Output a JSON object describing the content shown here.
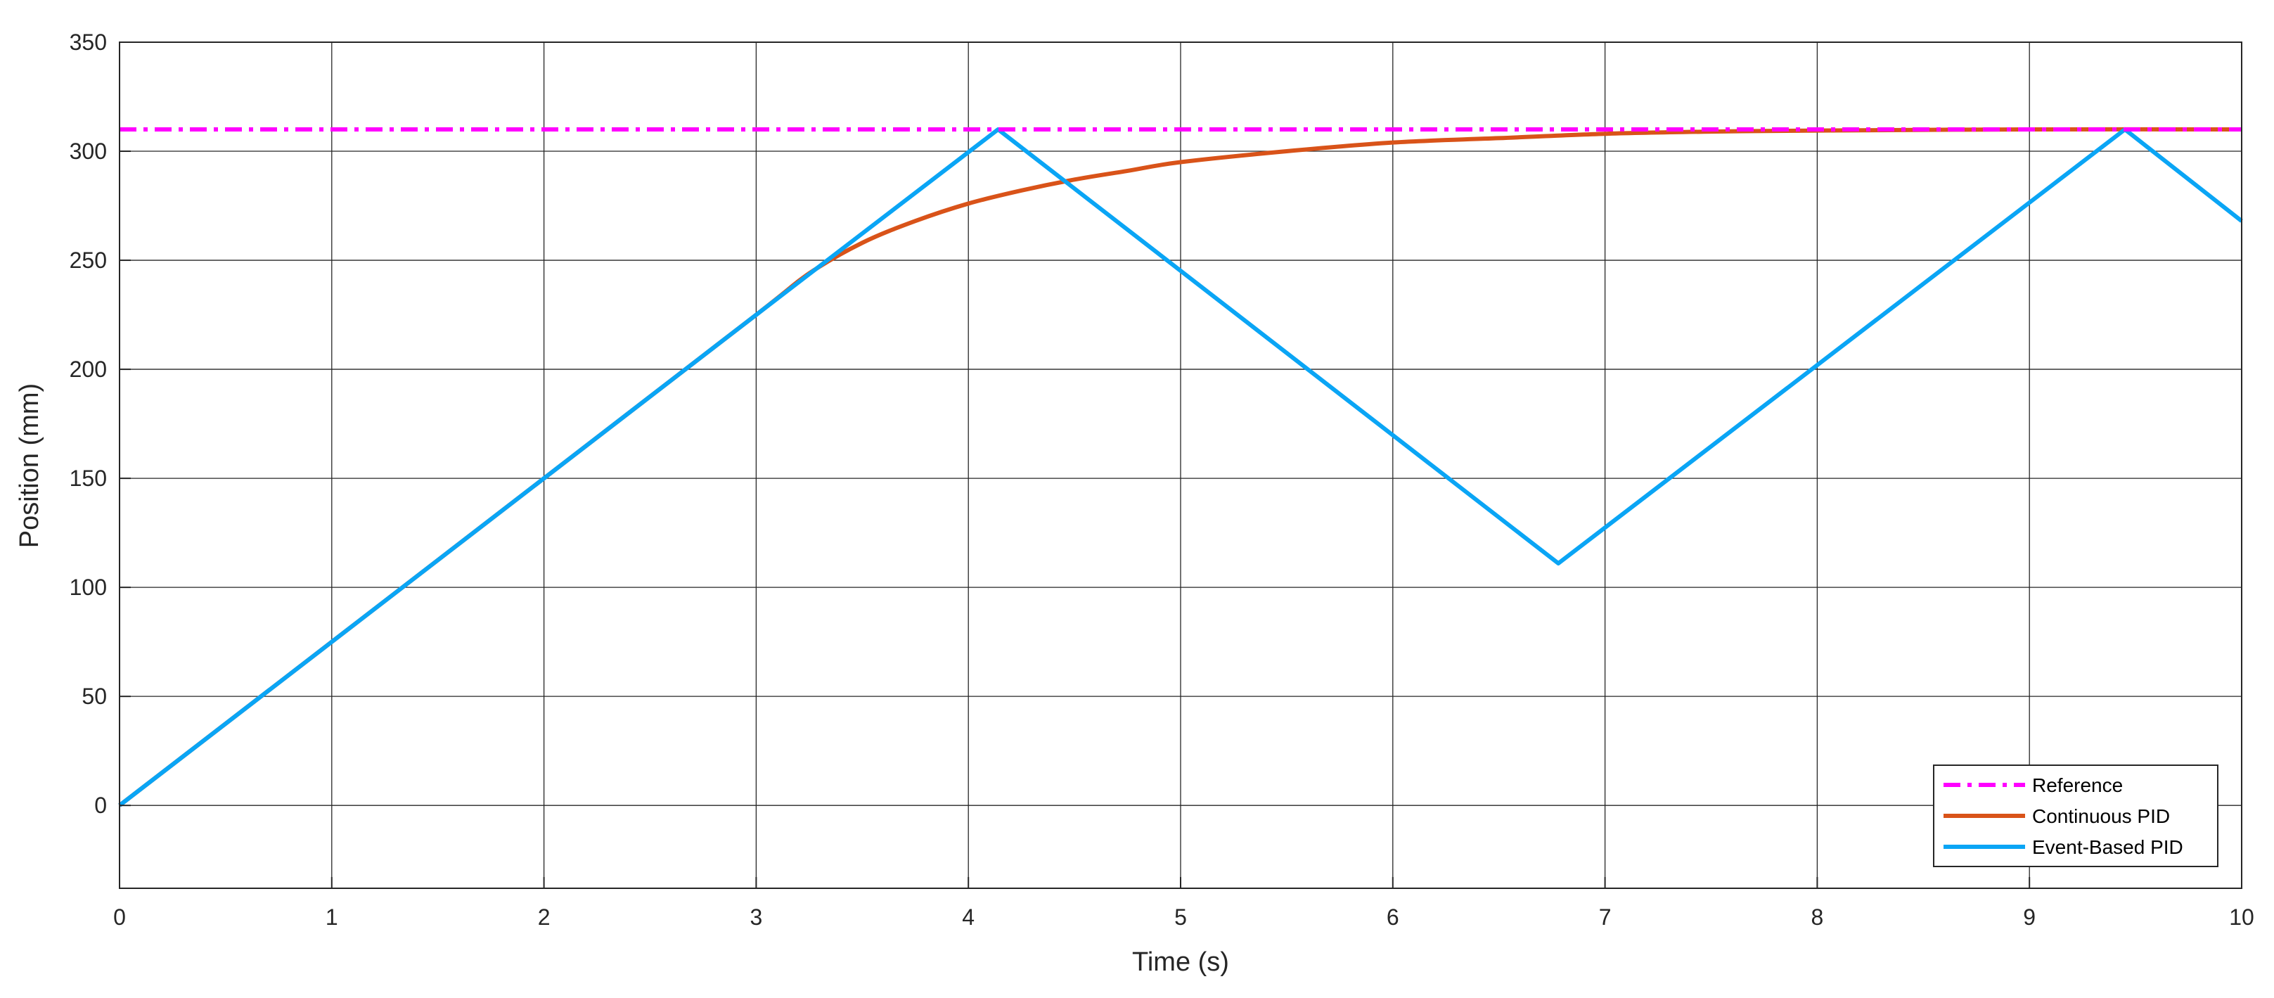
{
  "chart_data": {
    "type": "line",
    "xlabel": "Time (s)",
    "ylabel": "Position (mm)",
    "xlim": [
      0,
      10
    ],
    "ylim": [
      -38,
      350
    ],
    "xticks": [
      0,
      1,
      2,
      3,
      4,
      5,
      6,
      7,
      8,
      9,
      10
    ],
    "yticks": [
      0,
      50,
      100,
      150,
      200,
      250,
      300,
      350
    ],
    "grid": true,
    "legend_position": "bottom-right",
    "series": [
      {
        "name": "Reference",
        "color": "#ff00ff",
        "style": "dash-dot",
        "x": [
          0,
          10
        ],
        "y": [
          310,
          310
        ]
      },
      {
        "name": "Continuous PID",
        "color": "#d95319",
        "style": "solid",
        "x": [
          0,
          1,
          2,
          3,
          3.25,
          3.5,
          3.75,
          4,
          4.25,
          4.5,
          4.75,
          5,
          5.5,
          6,
          6.5,
          7,
          7.5,
          8,
          9,
          10
        ],
        "y": [
          0,
          75,
          150,
          225,
          244,
          258,
          268,
          276,
          282,
          287,
          291,
          295,
          300,
          304,
          306,
          308,
          309,
          309.5,
          310,
          310
        ]
      },
      {
        "name": "Event-Based PID",
        "color": "#0aa5f5",
        "style": "solid",
        "x": [
          0,
          3,
          4.14,
          6.78,
          9.45,
          10
        ],
        "y": [
          0,
          225,
          310,
          111,
          310,
          268
        ]
      }
    ]
  }
}
